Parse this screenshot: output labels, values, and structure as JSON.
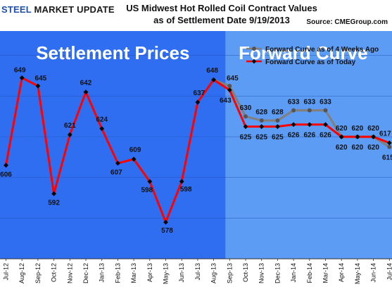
{
  "header": {
    "logo_text": "STEEL MARKET UPDATE",
    "title_line1": "US Midwest Hot Rolled Coil Contract  Values",
    "title_line2": "as of Settlement Date 9/19/2013",
    "source": "Source: CMEGroup.com"
  },
  "colors": {
    "settlement_bg": "#2f6ef0",
    "forward_bg": "#5c9cf5",
    "today_line": "#ff0000",
    "weeks_ago_line": "#808080",
    "marker": "#000000"
  },
  "chart_data": {
    "type": "line",
    "title": "US Midwest Hot Rolled Coil Contract  Values as of Settlement Date 9/19/2013",
    "regions": [
      {
        "label": "Settlement Prices",
        "from": "Jul-12",
        "to": "Aug-13"
      },
      {
        "label": "Forward Curve",
        "from": "Sep-13",
        "to": "Jul-14"
      }
    ],
    "categories": [
      "Jul-12",
      "Aug-12",
      "Sep-12",
      "Oct-12",
      "Nov-12",
      "Dec-12",
      "Jan-13",
      "Feb-13",
      "Mar-13",
      "Apr-13",
      "May-13",
      "Jun-13",
      "Jul-13",
      "Aug-13",
      "Sep-13",
      "Oct-13",
      "Nov-13",
      "Dec-13",
      "Jan-14",
      "Feb-14",
      "Mar-14",
      "Apr-14",
      "May-14",
      "Jun-14",
      "Jul-14"
    ],
    "ylim": [
      560,
      672
    ],
    "grid": true,
    "legend_position": "top-right",
    "series": [
      {
        "name": "Forward Curve as of Today",
        "color": "#ff0000",
        "values": [
          606,
          649,
          645,
          592,
          621,
          642,
          624,
          607,
          609,
          598,
          578,
          598,
          637,
          648,
          643,
          625,
          625,
          625,
          626,
          626,
          626,
          620,
          620,
          620,
          617
        ]
      },
      {
        "name": "Forward Curve as of 4 Weeks Ago",
        "color": "#808080",
        "values": [
          null,
          null,
          null,
          null,
          null,
          null,
          null,
          null,
          null,
          null,
          null,
          null,
          null,
          648,
          645,
          630,
          628,
          628,
          633,
          633,
          633,
          620,
          620,
          620,
          615
        ]
      }
    ],
    "labels_today": [
      "606",
      "649",
      "645",
      "592",
      "621",
      "642",
      "624",
      "607",
      "609",
      "598",
      "578",
      "598",
      "637",
      "648",
      "643",
      "625",
      "625",
      "625",
      "626",
      "626",
      "626",
      "620",
      "620",
      "620",
      "617"
    ],
    "labels_weeks_ago": [
      "648",
      "645",
      "630",
      "628",
      "628",
      "633",
      "633",
      "633",
      "620",
      "620",
      "620",
      "615"
    ]
  }
}
